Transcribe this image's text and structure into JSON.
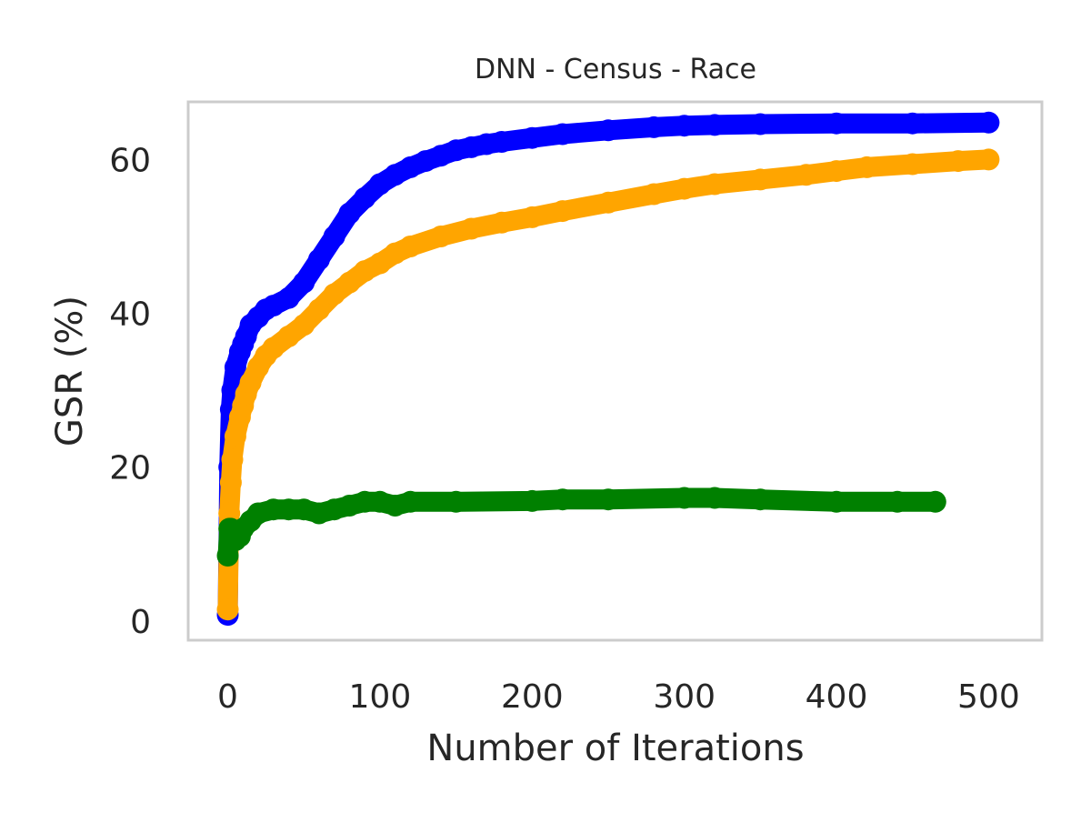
{
  "chart_data": {
    "type": "line",
    "title": "DNN - Census - Race",
    "xlabel": "Number of Iterations",
    "ylabel": "GSR (%)",
    "xlim": [
      -26,
      535
    ],
    "ylim": [
      -2.5,
      67.5
    ],
    "xticks": [
      0,
      100,
      200,
      300,
      400,
      500
    ],
    "yticks": [
      0,
      20,
      40,
      60
    ],
    "grid": false,
    "legend": "none",
    "series": [
      {
        "color": "#0000ff",
        "x": [
          0,
          1,
          2,
          3,
          5,
          8,
          10,
          12,
          15,
          20,
          25,
          30,
          40,
          50,
          60,
          70,
          80,
          90,
          100,
          110,
          120,
          130,
          140,
          150,
          160,
          170,
          180,
          200,
          220,
          250,
          280,
          300,
          320,
          350,
          400,
          450,
          500
        ],
        "y": [
          0.8,
          20,
          27.5,
          30,
          33,
          35,
          36,
          37,
          38.5,
          39.5,
          40.5,
          41,
          42,
          44,
          47,
          50,
          53,
          55,
          56.8,
          58,
          59,
          59.8,
          60.5,
          61.2,
          61.6,
          62,
          62.3,
          62.8,
          63.3,
          63.8,
          64.2,
          64.4,
          64.5,
          64.6,
          64.7,
          64.7,
          64.8
        ]
      },
      {
        "color": "#ffa500",
        "x": [
          0,
          1,
          2,
          3,
          5,
          8,
          10,
          12,
          15,
          20,
          25,
          30,
          40,
          50,
          60,
          70,
          80,
          90,
          100,
          110,
          120,
          140,
          160,
          180,
          200,
          220,
          250,
          280,
          300,
          320,
          350,
          380,
          400,
          420,
          450,
          480,
          500
        ],
        "y": [
          1.5,
          14,
          18,
          21,
          24,
          26.5,
          28,
          29.5,
          31,
          33,
          34.5,
          35.5,
          37,
          38.5,
          40.5,
          42.5,
          44,
          45.5,
          46.5,
          47.8,
          48.7,
          50,
          51,
          51.8,
          52.5,
          53.3,
          54.4,
          55.5,
          56.2,
          56.8,
          57.4,
          58,
          58.5,
          59,
          59.4,
          59.8,
          60
        ]
      },
      {
        "color": "#008000",
        "x": [
          0,
          1,
          2,
          3,
          5,
          8,
          10,
          15,
          20,
          30,
          40,
          50,
          60,
          70,
          80,
          90,
          100,
          110,
          120,
          150,
          200,
          220,
          250,
          300,
          320,
          350,
          400,
          440,
          465
        ],
        "y": [
          8.5,
          12,
          12,
          11,
          10.5,
          11,
          12,
          13,
          14,
          14.5,
          14.5,
          14.5,
          14,
          14.5,
          15,
          15.5,
          15.5,
          15,
          15.5,
          15.5,
          15.6,
          15.8,
          15.8,
          16,
          16,
          15.8,
          15.5,
          15.5,
          15.5
        ]
      }
    ]
  }
}
